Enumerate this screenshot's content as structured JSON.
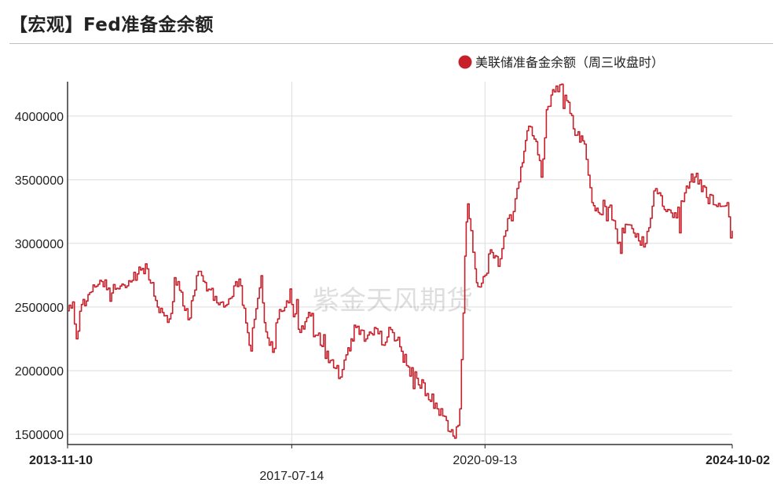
{
  "page": {
    "title": "【宏观】Fed准备金余额",
    "watermark": "紫金天风期货"
  },
  "chart_data": {
    "type": "line",
    "title": "【宏观】Fed准备金余额",
    "xlabel": "",
    "ylabel": "",
    "legend": {
      "position": "top-right"
    },
    "grid": true,
    "color": "#c8202a",
    "xlim": [
      "2013-11-10",
      "2024-10-02"
    ],
    "ylim": [
      1420000,
      4270000
    ],
    "yticks": [
      1500000,
      2000000,
      2500000,
      3000000,
      3500000,
      4000000
    ],
    "xticks": [
      {
        "date": "2013-11-10",
        "label": "2013-11-10",
        "bold": true,
        "row": 1
      },
      {
        "date": "2017-07-14",
        "label": "2017-07-14",
        "bold": false,
        "row": 2
      },
      {
        "date": "2020-09-13",
        "label": "2020-09-13",
        "bold": false,
        "row": 1
      },
      {
        "date": "2024-10-02",
        "label": "2024-10-02",
        "bold": true,
        "row": 1
      }
    ],
    "series": [
      {
        "name": "美联储准备金余额（周三收盘时）",
        "points": [
          [
            "2013-11-10",
            2470000
          ],
          [
            "2013-12-10",
            2540000
          ],
          [
            "2014-01-01",
            2250000
          ],
          [
            "2014-02-01",
            2520000
          ],
          [
            "2014-04-01",
            2620000
          ],
          [
            "2014-06-01",
            2700000
          ],
          [
            "2014-08-01",
            2610000
          ],
          [
            "2014-10-01",
            2680000
          ],
          [
            "2015-01-01",
            2760000
          ],
          [
            "2015-03-01",
            2800000
          ],
          [
            "2015-05-01",
            2500000
          ],
          [
            "2015-07-01",
            2380000
          ],
          [
            "2015-09-01",
            2700000
          ],
          [
            "2015-11-01",
            2400000
          ],
          [
            "2016-01-01",
            2780000
          ],
          [
            "2016-03-01",
            2640000
          ],
          [
            "2016-06-01",
            2500000
          ],
          [
            "2016-09-01",
            2720000
          ],
          [
            "2016-11-01",
            2200000
          ],
          [
            "2017-01-01",
            2650000
          ],
          [
            "2017-03-01",
            2200000
          ],
          [
            "2017-05-01",
            2480000
          ],
          [
            "2017-07-14",
            2520000
          ],
          [
            "2017-09-01",
            2300000
          ],
          [
            "2017-11-01",
            2430000
          ],
          [
            "2018-01-01",
            2200000
          ],
          [
            "2018-03-01",
            2080000
          ],
          [
            "2018-05-01",
            1950000
          ],
          [
            "2018-06-15",
            2180000
          ],
          [
            "2018-08-01",
            2340000
          ],
          [
            "2018-10-01",
            2250000
          ],
          [
            "2018-12-01",
            2330000
          ],
          [
            "2019-01-15",
            2200000
          ],
          [
            "2019-02-15",
            2340000
          ],
          [
            "2019-04-01",
            2240000
          ],
          [
            "2019-06-01",
            2040000
          ],
          [
            "2019-08-01",
            1940000
          ],
          [
            "2019-10-01",
            1820000
          ],
          [
            "2019-12-01",
            1700000
          ],
          [
            "2020-01-15",
            1640000
          ],
          [
            "2020-02-15",
            1520000
          ],
          [
            "2020-03-15",
            1470000
          ],
          [
            "2020-04-15",
            1700000
          ],
          [
            "2020-05-15",
            2900000
          ],
          [
            "2020-06-01",
            3310000
          ],
          [
            "2020-06-20",
            3100000
          ],
          [
            "2020-07-15",
            2800000
          ],
          [
            "2020-08-01",
            2660000
          ],
          [
            "2020-09-13",
            2750000
          ],
          [
            "2020-10-15",
            2950000
          ],
          [
            "2020-12-01",
            2820000
          ],
          [
            "2021-01-15",
            3100000
          ],
          [
            "2021-03-01",
            3250000
          ],
          [
            "2021-04-15",
            3600000
          ],
          [
            "2021-06-01",
            3920000
          ],
          [
            "2021-07-15",
            3800000
          ],
          [
            "2021-08-15",
            3520000
          ],
          [
            "2021-09-15",
            4050000
          ],
          [
            "2021-11-01",
            4190000
          ],
          [
            "2021-12-15",
            4250000
          ],
          [
            "2022-01-15",
            4120000
          ],
          [
            "2022-03-15",
            3850000
          ],
          [
            "2022-05-01",
            3780000
          ],
          [
            "2022-06-15",
            3320000
          ],
          [
            "2022-08-01",
            3230000
          ],
          [
            "2022-10-01",
            3300000
          ],
          [
            "2022-11-15",
            3000000
          ],
          [
            "2023-01-01",
            3150000
          ],
          [
            "2023-03-01",
            3050000
          ],
          [
            "2023-05-01",
            3000000
          ],
          [
            "2023-07-01",
            3430000
          ],
          [
            "2023-09-01",
            3250000
          ],
          [
            "2023-11-01",
            3200000
          ],
          [
            "2024-01-01",
            3450000
          ],
          [
            "2024-03-01",
            3550000
          ],
          [
            "2024-05-01",
            3360000
          ],
          [
            "2024-07-01",
            3290000
          ],
          [
            "2024-09-01",
            3320000
          ],
          [
            "2024-10-02",
            3100000
          ]
        ]
      }
    ]
  }
}
